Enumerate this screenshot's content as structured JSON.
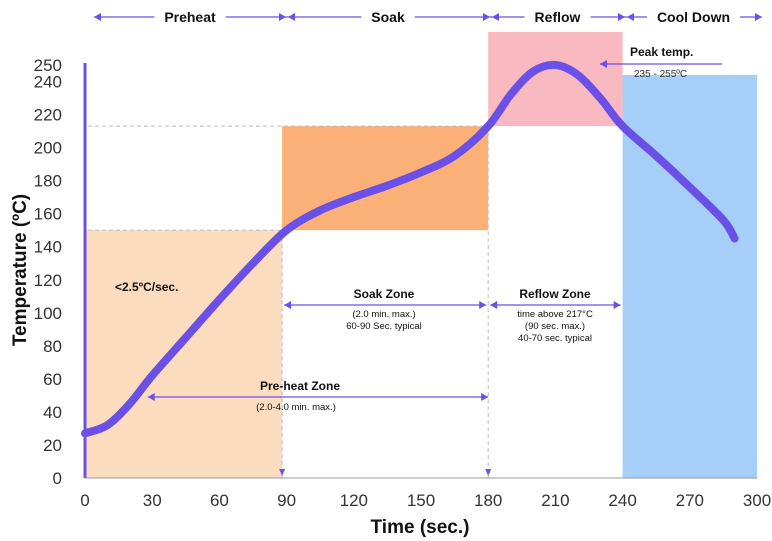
{
  "chart_data": {
    "type": "line",
    "xlabel": "Time (sec.)",
    "ylabel": "Temperature (ºC)",
    "xlim": [
      0,
      300
    ],
    "ylim": [
      0,
      250
    ],
    "x_ticks": [
      0,
      30,
      60,
      90,
      120,
      150,
      180,
      210,
      240,
      270,
      300
    ],
    "y_ticks": [
      0,
      20,
      40,
      60,
      80,
      100,
      120,
      140,
      160,
      180,
      200,
      220,
      240,
      250
    ],
    "grid": false,
    "series": [
      {
        "color": "#6b50e8",
        "x": [
          0,
          10,
          20,
          30,
          45,
          60,
          75,
          90,
          105,
          120,
          135,
          150,
          165,
          180,
          190,
          200,
          210,
          220,
          230,
          240,
          255,
          270,
          285,
          290
        ],
        "y": [
          27,
          32,
          45,
          62,
          85,
          108,
          130,
          150,
          162,
          170,
          177,
          185,
          195,
          213,
          232,
          246,
          250,
          244,
          230,
          213,
          195,
          176,
          156,
          145
        ]
      }
    ],
    "regions": [
      {
        "name": "preheat-zone",
        "x": [
          0,
          88
        ],
        "y": [
          0,
          150
        ],
        "color": "#fcdcbf"
      },
      {
        "name": "soak-zone",
        "x": [
          88,
          180
        ],
        "y": [
          150,
          213
        ],
        "color": "#fbb077"
      },
      {
        "name": "reflow-zone",
        "x": [
          180,
          240
        ],
        "y": [
          213,
          270
        ],
        "color": "#f9b9c0"
      },
      {
        "name": "cool-down-zone",
        "x": [
          240,
          300
        ],
        "y": [
          0,
          244
        ],
        "color": "#a5cef8"
      }
    ],
    "reference_lines": [
      {
        "axis": "y",
        "value": 150
      },
      {
        "axis": "y",
        "value": 213
      },
      {
        "axis": "x",
        "value": 88
      },
      {
        "axis": "x",
        "value": 180
      }
    ],
    "phases": [
      {
        "label": "Preheat",
        "x": [
          0,
          90
        ]
      },
      {
        "label": "Soak",
        "x": [
          90,
          180
        ]
      },
      {
        "label": "Reflow",
        "x": [
          180,
          240
        ]
      },
      {
        "label": "Cool Down",
        "x": [
          240,
          300
        ]
      }
    ],
    "annotations": [
      {
        "id": "ramp",
        "lines": [
          "<2.5ºC/sec."
        ]
      },
      {
        "id": "preheat",
        "lines": [
          "Pre-heat Zone",
          "(2.0-4.0 min. max.)"
        ]
      },
      {
        "id": "soak",
        "lines": [
          "Soak Zone",
          "(2.0 min. max.)",
          "60-90 Sec. typical"
        ]
      },
      {
        "id": "reflow",
        "lines": [
          "Reflow Zone",
          "time above 217°C",
          "(90 sec. max.)",
          "40-70 sec. typical"
        ]
      },
      {
        "id": "peak",
        "lines": [
          "Peak temp.",
          "235 - 255ºC"
        ]
      }
    ]
  }
}
